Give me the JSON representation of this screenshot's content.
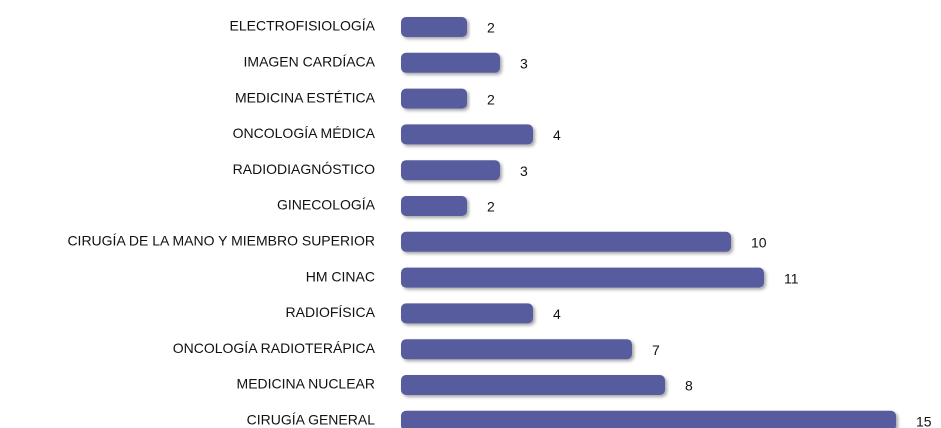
{
  "chart_data": {
    "type": "bar",
    "orientation": "horizontal",
    "categories": [
      "ELECTROFISIOLOGÍA",
      "IMAGEN CARDÍACA",
      "MEDICINA ESTÉTICA",
      "ONCOLOGÍA MÉDICA",
      "RADIODIAGNÓSTICO",
      "GINECOLOGÍA",
      "CIRUGÍA DE LA MANO Y MIEMBRO SUPERIOR",
      "HM CINAC",
      "RADIOFÍSICA",
      "ONCOLOGÍA RADIOTERÁPICA",
      "MEDICINA NUCLEAR",
      "CIRUGÍA GENERAL"
    ],
    "values": [
      2,
      3,
      2,
      4,
      3,
      2,
      10,
      11,
      4,
      7,
      8,
      15
    ],
    "color": "#565c9e"
  }
}
